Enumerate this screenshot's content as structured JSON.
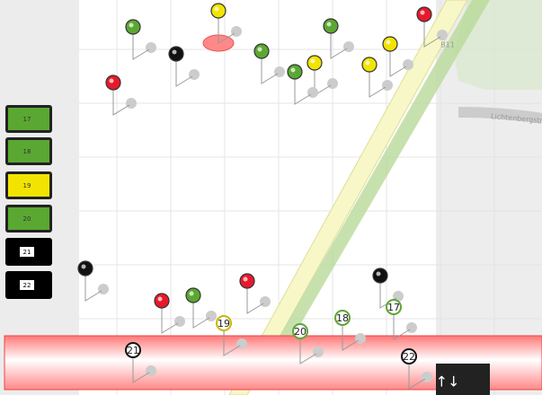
{
  "buttons": [
    "17",
    "18",
    "19",
    "20",
    "21",
    "22"
  ],
  "pins": [
    "19",
    "20",
    "18",
    "17",
    "21",
    "22"
  ],
  "street_labels": [
    "B11",
    "Lichtenbergstr"
  ],
  "toggle": "↑↓"
}
